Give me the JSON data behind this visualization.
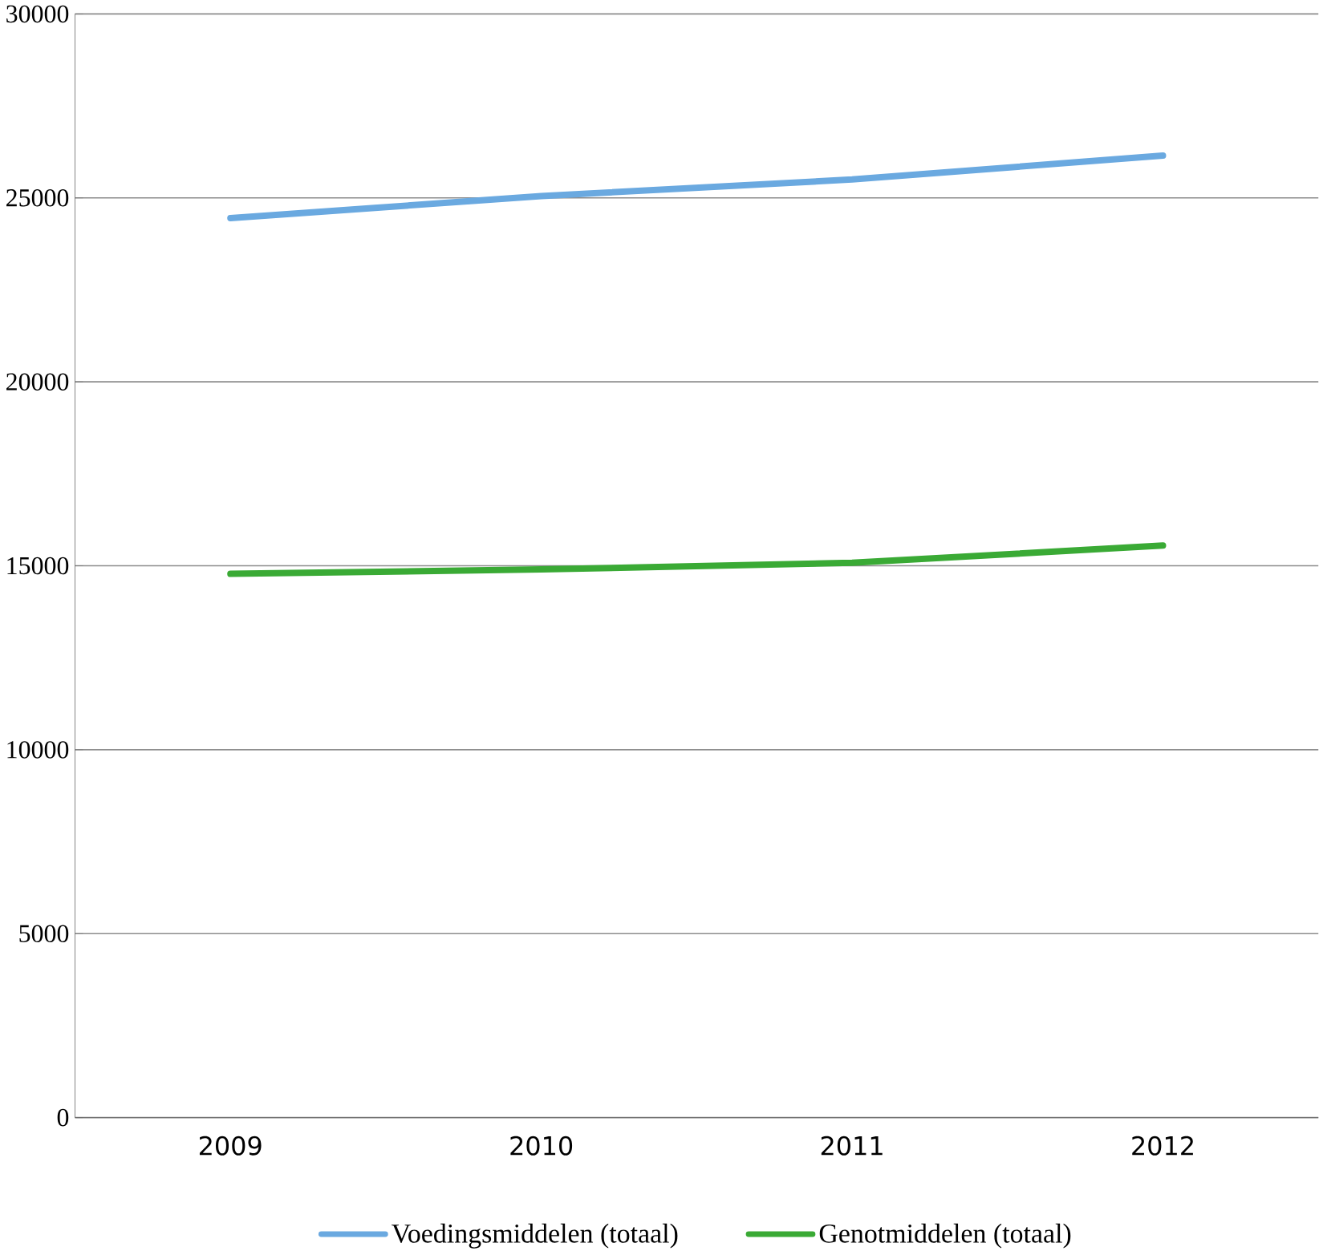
{
  "chart_data": {
    "type": "line",
    "categories": [
      "2009",
      "2010",
      "2011",
      "2012"
    ],
    "series": [
      {
        "name": "Voedingsmiddelen (totaal)",
        "color": "#6aa9e0",
        "values": [
          24450,
          25050,
          25500,
          26150
        ]
      },
      {
        "name": "Genotmiddelen (totaal)",
        "color": "#3aaa35",
        "values": [
          14780,
          14900,
          15080,
          15550
        ]
      }
    ],
    "ylim": [
      0,
      30000
    ],
    "yticks": [
      0,
      5000,
      10000,
      15000,
      20000,
      25000,
      30000
    ],
    "grid": "y",
    "legend": "bottom",
    "marker": "none",
    "line_style": "solid"
  }
}
